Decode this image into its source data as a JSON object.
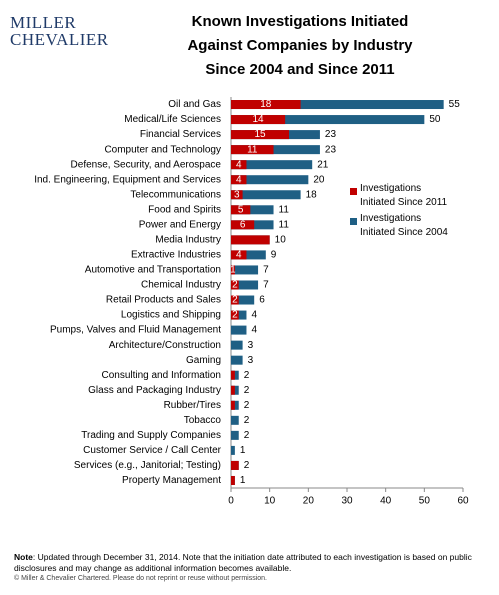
{
  "logo": [
    "MILLER",
    "CHEVALIER"
  ],
  "chart_data": {
    "type": "overlap-hbar",
    "title": [
      "Known Investigations Initiated",
      "Against Companies by Industry",
      "Since 2004 and Since 2011"
    ],
    "categories": [
      "Oil and Gas",
      "Medical/Life Sciences",
      "Financial Services",
      "Computer and Technology",
      "Defense, Security, and Aerospace",
      "Ind. Engineering, Equipment and Services",
      "Telecommunications",
      "Food and Spirits",
      "Power and Energy",
      "Media Industry",
      "Extractive Industries",
      "Automotive and Transportation",
      "Chemical Industry",
      "Retail Products and Sales",
      "Logistics and Shipping",
      "Pumps, Valves and Fluid Management",
      "Architecture/Construction",
      "Gaming",
      "Consulting and Information",
      "Glass and Packaging Industry",
      "Rubber/Tires",
      "Tobacco",
      "Trading and Supply Companies",
      "Customer Service / Call Center",
      "Services (e.g., Janitorial; Testing)",
      "Property Management"
    ],
    "series": [
      {
        "name": "Investigations Initiated Since 2011",
        "color": "#c00000",
        "values": [
          18,
          14,
          15,
          11,
          4,
          4,
          3,
          5,
          6,
          10,
          4,
          1,
          2,
          2,
          2,
          null,
          null,
          null,
          1,
          1,
          1,
          null,
          null,
          null,
          2,
          1
        ],
        "value_labels": [
          "18",
          "14",
          "15",
          "11",
          "4",
          "4",
          "3",
          "5",
          "6",
          null,
          "4",
          "1",
          "2",
          "2",
          "2",
          null,
          null,
          null,
          null,
          null,
          null,
          null,
          null,
          null,
          null,
          null
        ]
      },
      {
        "name": "Investigations Initiated Since 2004",
        "color": "#1f5f84",
        "values": [
          55,
          50,
          23,
          23,
          21,
          20,
          18,
          11,
          11,
          10,
          9,
          7,
          7,
          6,
          4,
          4,
          3,
          3,
          2,
          2,
          2,
          2,
          2,
          1,
          2,
          1
        ]
      }
    ],
    "xlim": [
      0,
      60
    ],
    "xticks": [
      0,
      10,
      20,
      30,
      40,
      50,
      60
    ],
    "legend": "right"
  },
  "note": {
    "label": "Note",
    "text": ": Updated through December 31, 2014. Note that the initiation date attributed to each investigation is based on public disclosures and may change as additional information becomes available.",
    "copyright": "© Miller & Chevalier Chartered.  Please do not reprint or reuse without permission."
  }
}
